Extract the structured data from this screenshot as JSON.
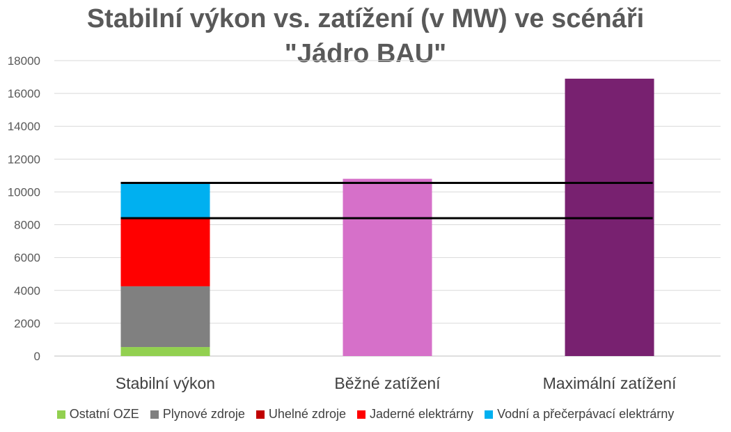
{
  "title_line1": "Stabilní výkon vs. zatížení (v MW) ve scénáři",
  "title_line2": "\"Jádro BAU\"",
  "chart_data": {
    "type": "bar",
    "stacked": true,
    "title": "Stabilní výkon vs. zatížení (v MW) ve scénáři \"Jádro BAU\"",
    "categories": [
      "Stabilní výkon",
      "Běžné zatížení",
      "Maximální zatížení"
    ],
    "ylim": [
      0,
      18000
    ],
    "yticks": [
      0,
      2000,
      4000,
      6000,
      8000,
      10000,
      12000,
      14000,
      16000,
      18000
    ],
    "grid": true,
    "legend_position": "bottom",
    "series": [
      {
        "name": "Ostatní OZE",
        "color": "#92D050",
        "values": [
          550,
          0,
          0
        ]
      },
      {
        "name": "Plynové zdroje",
        "color": "#808080",
        "values": [
          3700,
          0,
          0
        ]
      },
      {
        "name": "Uhelné zdroje",
        "color": "#C00000",
        "values": [
          0,
          0,
          0
        ]
      },
      {
        "name": "Jaderné elektrárny",
        "color": "#FF0000",
        "values": [
          4150,
          0,
          0
        ]
      },
      {
        "name": "Vodní a přečerpávací elektrárny",
        "color": "#00B0F0",
        "values": [
          2150,
          0,
          0
        ]
      }
    ],
    "load_bars": [
      {
        "category": "Běžné zatížení",
        "value": 10800,
        "color": "#D670C9"
      },
      {
        "category": "Maximální zatížení",
        "value": 16900,
        "color": "#782170"
      }
    ],
    "reference_lines": [
      10550,
      8400
    ]
  }
}
